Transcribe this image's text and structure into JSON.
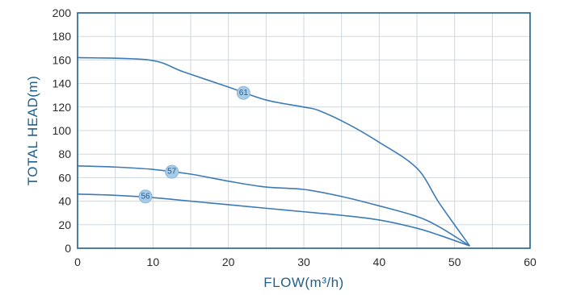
{
  "chart_data": {
    "type": "line",
    "title": "",
    "xlabel": "FLOW(m³/h)",
    "ylabel": "TOTAL HEAD(m)",
    "xlim": [
      0,
      60
    ],
    "ylim": [
      0,
      200
    ],
    "xticks": [
      0,
      10,
      20,
      30,
      40,
      50,
      60
    ],
    "yticks": [
      0,
      20,
      40,
      60,
      80,
      100,
      120,
      140,
      160,
      180,
      200
    ],
    "grid": true,
    "legend": "none",
    "colors": {
      "curve": "#3d7bb6",
      "frame": "#1f5f8c",
      "grid": "#cfd7dd",
      "badge": "#a9cbe8"
    },
    "series": [
      {
        "name": "61",
        "label_at": [
          22,
          132
        ],
        "x": [
          0,
          9.5,
          14,
          20,
          25,
          30,
          32,
          36,
          40,
          45,
          48,
          52
        ],
        "y": [
          162,
          160,
          150,
          137,
          126,
          120,
          117,
          105,
          90,
          68,
          38,
          2
        ]
      },
      {
        "name": "57",
        "label_at": [
          12.5,
          65
        ],
        "x": [
          0,
          5,
          10,
          15,
          20,
          25,
          30,
          35,
          40,
          45,
          48,
          52
        ],
        "y": [
          70,
          69,
          67,
          63,
          57,
          52,
          50,
          44,
          36,
          27,
          18,
          2
        ]
      },
      {
        "name": "56",
        "label_at": [
          9,
          44
        ],
        "x": [
          0,
          5,
          10,
          15,
          20,
          25,
          30,
          35,
          40,
          45,
          48,
          52
        ],
        "y": [
          46,
          45,
          43,
          40,
          37,
          34,
          31,
          28,
          24,
          17,
          11,
          2
        ]
      }
    ]
  }
}
